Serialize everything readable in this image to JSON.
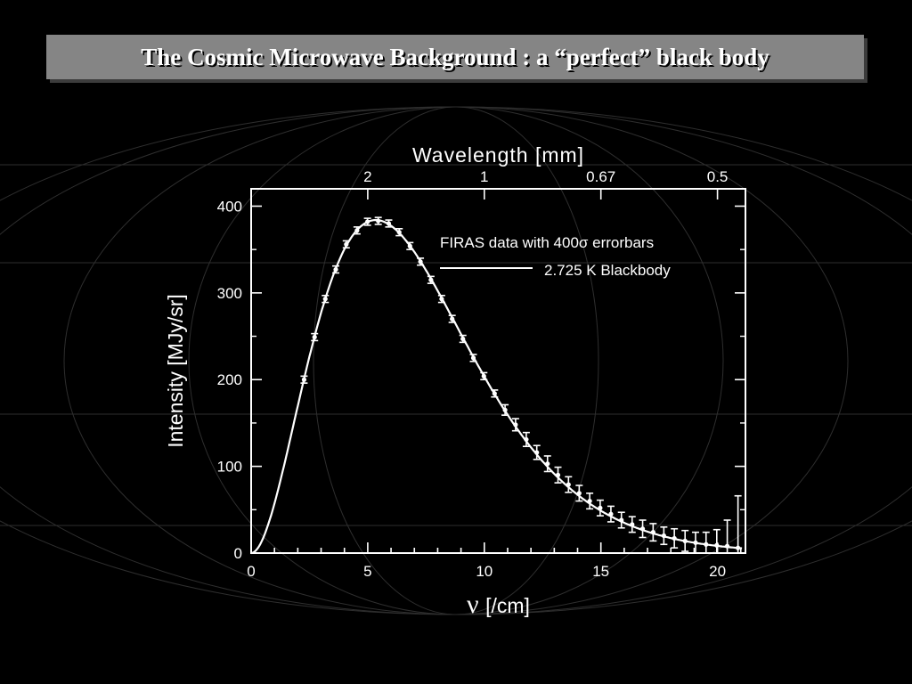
{
  "slide": {
    "title": "The Cosmic Microwave Background : a “perfect” black body"
  },
  "chart_data": {
    "type": "line",
    "xlabel_symbol": "ν",
    "xlabel_unit": "[/cm]",
    "ylabel": "Intensity [MJy/sr]",
    "top_axis_label": "Wavelength [mm]",
    "xlim": [
      0,
      21.2
    ],
    "ylim": [
      0,
      420
    ],
    "x_ticks": [
      0,
      5,
      10,
      15,
      20
    ],
    "y_ticks": [
      0,
      100,
      200,
      300,
      400
    ],
    "top_ticks": [
      {
        "label": "2",
        "wavenumber": 5
      },
      {
        "label": "1",
        "wavenumber": 10
      },
      {
        "label": "0.67",
        "wavenumber": 15
      },
      {
        "label": "0.5",
        "wavenumber": 20
      }
    ],
    "legend": {
      "data_label": "FIRAS data with 400σ errorbars",
      "line_label": "2.725 K Blackbody",
      "placement": "top-right"
    },
    "series": [
      {
        "name": "FIRAS data with 400σ errorbars",
        "kind": "points_with_errorbars",
        "x": [
          2.27,
          2.72,
          3.18,
          3.63,
          4.08,
          4.54,
          4.99,
          5.45,
          5.9,
          6.35,
          6.81,
          7.26,
          7.71,
          8.17,
          8.62,
          9.08,
          9.53,
          9.98,
          10.44,
          10.89,
          11.34,
          11.8,
          12.25,
          12.71,
          13.16,
          13.61,
          14.07,
          14.52,
          14.97,
          15.43,
          15.88,
          16.34,
          16.79,
          17.24,
          17.7,
          18.15,
          18.61,
          19.06,
          19.51,
          19.97,
          20.42,
          20.88
        ],
        "y": [
          200,
          249,
          293,
          327,
          356,
          372,
          382,
          383,
          380,
          370,
          354,
          336,
          315,
          293,
          270,
          247,
          225,
          204,
          184,
          165,
          148,
          131,
          116,
          103,
          90,
          79,
          69,
          60,
          52,
          45,
          38,
          33,
          28,
          24,
          20,
          17,
          14,
          12,
          10,
          9,
          8,
          6
        ],
        "err": [
          4,
          4,
          4,
          4,
          4,
          4,
          4,
          4,
          4,
          4,
          4,
          4,
          4,
          4,
          4,
          4,
          4,
          4,
          4,
          6,
          7,
          8,
          8,
          9,
          9,
          9,
          9,
          9,
          9,
          9,
          9,
          9,
          10,
          10,
          10,
          11,
          12,
          12,
          14,
          18,
          30,
          60
        ]
      },
      {
        "name": "2.725 K Blackbody",
        "kind": "line",
        "temperature_K": 2.725
      }
    ]
  }
}
